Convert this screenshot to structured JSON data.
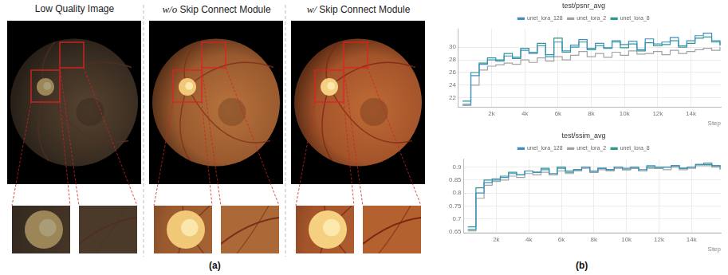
{
  "panel_a": {
    "label": "(a)",
    "columns": [
      "Low Quality Image",
      "w/o Skip Connect Module",
      "w/ Skip Connect Module"
    ]
  },
  "panel_b": {
    "label": "(b)"
  },
  "chart_data": [
    {
      "type": "line",
      "title": "test/psnr_avg",
      "x_label": "Step",
      "grid": true,
      "legend": "top",
      "line_style": "stepped",
      "x": [
        250,
        750,
        1250,
        1750,
        2250,
        2750,
        3250,
        3750,
        4250,
        4750,
        5250,
        5750,
        6250,
        6750,
        7250,
        7750,
        8250,
        8750,
        9250,
        9750,
        10250,
        10750,
        11250,
        11750,
        12250,
        12750,
        13250,
        13750,
        14250,
        14750,
        15250,
        15750
      ],
      "xlim": [
        0,
        15800
      ],
      "xticks": [
        {
          "value": 2000,
          "label": "2k"
        },
        {
          "value": 4000,
          "label": "4k"
        },
        {
          "value": 6000,
          "label": "6k"
        },
        {
          "value": 8000,
          "label": "8k"
        },
        {
          "value": 10000,
          "label": "10k"
        },
        {
          "value": 12000,
          "label": "12k"
        },
        {
          "value": 14000,
          "label": "14k"
        }
      ],
      "ylim": [
        20.5,
        32.8
      ],
      "yticks": [
        22,
        24,
        26,
        28,
        30
      ],
      "series": [
        {
          "name": "unet_lora_128",
          "color": "#3d8fc0",
          "values": [
            21.0,
            25.5,
            27.3,
            28.0,
            27.8,
            28.6,
            28.2,
            29.5,
            29.0,
            30.2,
            28.5,
            30.8,
            29.4,
            30.3,
            31.2,
            29.8,
            30.6,
            29.9,
            31.0,
            30.4,
            30.9,
            29.6,
            31.3,
            30.5,
            30.8,
            31.5,
            30.2,
            31.0,
            31.8,
            32.2,
            31.0,
            30.4
          ]
        },
        {
          "name": "unet_lora_2",
          "color": "#a3a3a3",
          "values": [
            20.8,
            24.0,
            26.4,
            27.0,
            27.2,
            27.5,
            27.3,
            28.0,
            27.6,
            28.3,
            27.8,
            28.5,
            28.0,
            28.7,
            29.3,
            28.5,
            29.0,
            28.4,
            29.2,
            28.7,
            29.4,
            28.9,
            29.0,
            29.3,
            28.8,
            29.5,
            29.0,
            29.3,
            29.6,
            29.8,
            29.5,
            30.0
          ]
        },
        {
          "name": "unet_lora_8",
          "color": "#2a9a8c",
          "values": [
            21.5,
            26.0,
            27.5,
            28.3,
            28.0,
            29.0,
            28.4,
            29.8,
            29.2,
            30.6,
            28.8,
            31.4,
            29.2,
            30.0,
            30.8,
            29.6,
            30.2,
            29.8,
            30.8,
            29.9,
            30.5,
            29.4,
            30.7,
            30.2,
            30.4,
            31.0,
            30.0,
            30.6,
            31.4,
            31.6,
            30.8,
            30.2
          ]
        }
      ]
    },
    {
      "type": "line",
      "title": "test/ssim_avg",
      "x_label": "Step",
      "grid": true,
      "legend": "top",
      "line_style": "stepped",
      "x": [
        250,
        750,
        1250,
        1750,
        2250,
        2750,
        3250,
        3750,
        4250,
        4750,
        5250,
        5750,
        6250,
        6750,
        7250,
        7750,
        8250,
        8750,
        9250,
        9750,
        10250,
        10750,
        11250,
        11750,
        12250,
        12750,
        13250,
        13750,
        14250,
        14750,
        15250,
        15750
      ],
      "xlim": [
        0,
        15800
      ],
      "xticks": [
        {
          "value": 2000,
          "label": "2k"
        },
        {
          "value": 4000,
          "label": "4k"
        },
        {
          "value": 6000,
          "label": "6k"
        },
        {
          "value": 8000,
          "label": "8k"
        },
        {
          "value": 10000,
          "label": "10k"
        },
        {
          "value": 12000,
          "label": "12k"
        },
        {
          "value": 14000,
          "label": "14k"
        }
      ],
      "ylim": [
        0.645,
        0.93
      ],
      "yticks": [
        0.65,
        0.7,
        0.75,
        0.8,
        0.85,
        0.9
      ],
      "series": [
        {
          "name": "unet_lora_128",
          "color": "#3d8fc0",
          "values": [
            0.66,
            0.8,
            0.84,
            0.85,
            0.86,
            0.875,
            0.87,
            0.885,
            0.88,
            0.89,
            0.875,
            0.895,
            0.885,
            0.89,
            0.9,
            0.885,
            0.895,
            0.89,
            0.9,
            0.895,
            0.9,
            0.89,
            0.905,
            0.9,
            0.9,
            0.905,
            0.895,
            0.9,
            0.91,
            0.915,
            0.905,
            0.9
          ]
        },
        {
          "name": "unet_lora_2",
          "color": "#a3a3a3",
          "values": [
            0.655,
            0.78,
            0.83,
            0.845,
            0.85,
            0.865,
            0.86,
            0.875,
            0.87,
            0.88,
            0.87,
            0.885,
            0.875,
            0.885,
            0.895,
            0.88,
            0.89,
            0.885,
            0.895,
            0.89,
            0.895,
            0.885,
            0.895,
            0.895,
            0.89,
            0.9,
            0.89,
            0.895,
            0.905,
            0.905,
            0.9,
            0.895
          ]
        },
        {
          "name": "unet_lora_8",
          "color": "#2a9a8c",
          "values": [
            0.67,
            0.82,
            0.85,
            0.855,
            0.865,
            0.88,
            0.87,
            0.885,
            0.88,
            0.895,
            0.87,
            0.9,
            0.88,
            0.89,
            0.9,
            0.88,
            0.895,
            0.89,
            0.9,
            0.89,
            0.895,
            0.885,
            0.9,
            0.895,
            0.9,
            0.905,
            0.895,
            0.9,
            0.91,
            0.91,
            0.905,
            0.89
          ]
        }
      ]
    }
  ]
}
